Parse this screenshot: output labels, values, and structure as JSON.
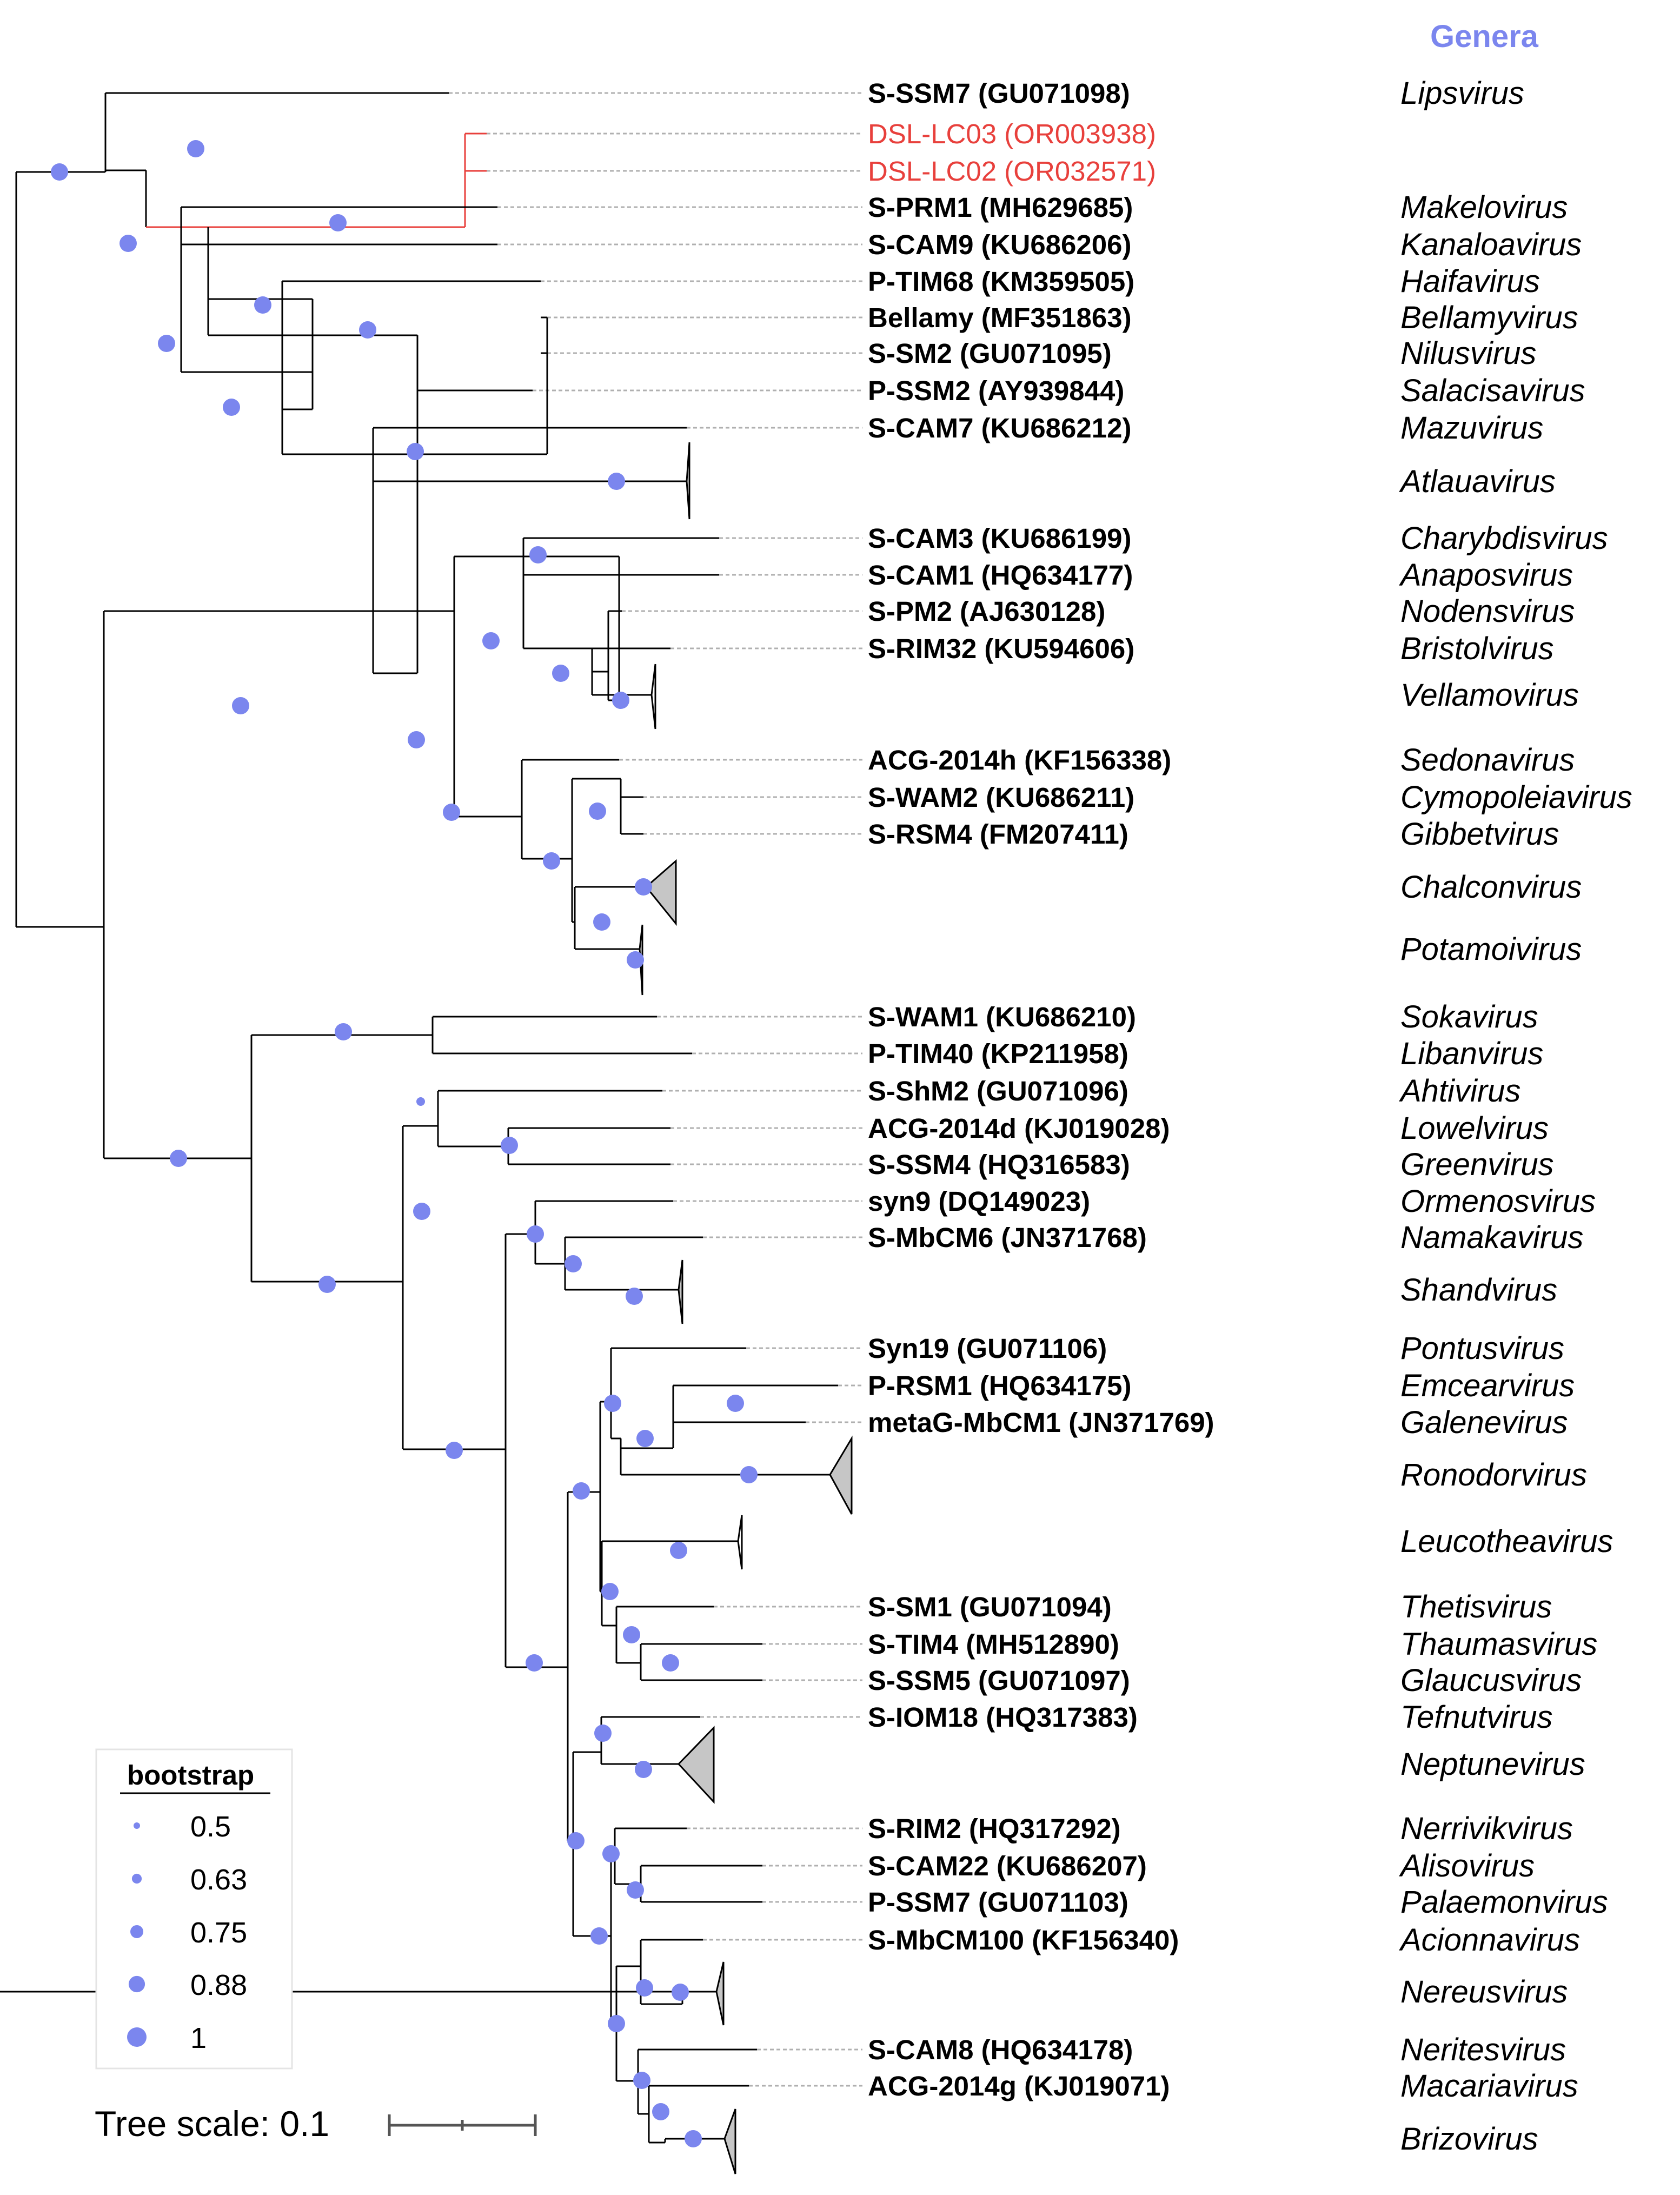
{
  "header": {
    "genera_label": "Genera"
  },
  "colors": {
    "bootstrap_dot": "#7b86ee",
    "highlight": "#e8403c",
    "collapsed_fill": "#c6c6c6",
    "branch": "#000000",
    "dashed": "#b0b0b0"
  },
  "tips": [
    {
      "label": "S-SSM7 (GU071098)",
      "genus": "Lipsvirus"
    },
    {
      "label": "DSL-LC03 (OR003938)",
      "genus": "",
      "highlight": true
    },
    {
      "label": "DSL-LC02 (OR032571)",
      "genus": "",
      "highlight": true
    },
    {
      "label": "S-PRM1 (MH629685)",
      "genus": "Makelovirus"
    },
    {
      "label": "S-CAM9 (KU686206)",
      "genus": "Kanaloavirus"
    },
    {
      "label": "P-TIM68 (KM359505)",
      "genus": "Haifavirus"
    },
    {
      "label": "Bellamy (MF351863)",
      "genus": "Bellamyvirus"
    },
    {
      "label": "S-SM2 (GU071095)",
      "genus": "Nilusvirus"
    },
    {
      "label": "P-SSM2 (AY939844)",
      "genus": "Salacisavirus"
    },
    {
      "label": "S-CAM7 (KU686212)",
      "genus": "Mazuvirus"
    },
    {
      "label": "",
      "genus": "Atlauavirus"
    },
    {
      "label": "S-CAM3 (KU686199)",
      "genus": "Charybdisvirus"
    },
    {
      "label": "S-CAM1 (HQ634177)",
      "genus": "Anaposvirus"
    },
    {
      "label": "S-PM2 (AJ630128)",
      "genus": "Nodensvirus"
    },
    {
      "label": "S-RIM32 (KU594606)",
      "genus": "Bristolvirus"
    },
    {
      "label": "",
      "genus": "Vellamovirus"
    },
    {
      "label": "ACG-2014h (KF156338)",
      "genus": "Sedonavirus"
    },
    {
      "label": "S-WAM2 (KU686211)",
      "genus": "Cymopoleiavirus"
    },
    {
      "label": "S-RSM4 (FM207411)",
      "genus": "Gibbetvirus"
    },
    {
      "label": "",
      "genus": "Chalconvirus"
    },
    {
      "label": "",
      "genus": "Potamoivirus"
    },
    {
      "label": "S-WAM1 (KU686210)",
      "genus": "Sokavirus"
    },
    {
      "label": "P-TIM40 (KP211958)",
      "genus": "Libanvirus"
    },
    {
      "label": "S-ShM2 (GU071096)",
      "genus": "Ahtivirus"
    },
    {
      "label": "ACG-2014d (KJ019028)",
      "genus": "Lowelvirus"
    },
    {
      "label": "S-SSM4 (HQ316583)",
      "genus": "Greenvirus"
    },
    {
      "label": "syn9 (DQ149023)",
      "genus": "Ormenosvirus"
    },
    {
      "label": "S-MbCM6 (JN371768)",
      "genus": "Namakavirus"
    },
    {
      "label": "",
      "genus": "Shandvirus"
    },
    {
      "label": "Syn19 (GU071106)",
      "genus": "Pontusvirus"
    },
    {
      "label": "P-RSM1 (HQ634175)",
      "genus": "Emcearvirus"
    },
    {
      "label": "metaG-MbCM1 (JN371769)",
      "genus": "Galenevirus"
    },
    {
      "label": "",
      "genus": "Ronodorvirus"
    },
    {
      "label": "",
      "genus": "Leucotheavirus"
    },
    {
      "label": "S-SM1 (GU071094)",
      "genus": "Thetisvirus"
    },
    {
      "label": "S-TIM4 (MH512890)",
      "genus": "Thaumasvirus"
    },
    {
      "label": "S-SSM5 (GU071097)",
      "genus": "Glaucusvirus"
    },
    {
      "label": "S-IOM18 (HQ317383)",
      "genus": "Tefnutvirus"
    },
    {
      "label": "",
      "genus": "Neptunevirus"
    },
    {
      "label": "S-RIM2 (HQ317292)",
      "genus": "Nerrivikvirus"
    },
    {
      "label": "S-CAM22 (KU686207)",
      "genus": "Alisovirus"
    },
    {
      "label": "P-SSM7 (GU071103)",
      "genus": "Palaemonvirus"
    },
    {
      "label": "S-MbCM100 (KF156340)",
      "genus": "Acionnavirus"
    },
    {
      "label": "",
      "genus": "Nereusvirus"
    },
    {
      "label": "S-CAM8 (HQ634178)",
      "genus": "Neritesvirus"
    },
    {
      "label": "ACG-2014g (KJ019071)",
      "genus": "Macariavirus"
    },
    {
      "label": "",
      "genus": "Brizovirus"
    }
  ],
  "legend": {
    "title": "bootstrap",
    "items": [
      {
        "label": "0.5",
        "value": 0.5
      },
      {
        "label": "0.63",
        "value": 0.63
      },
      {
        "label": "0.75",
        "value": 0.75
      },
      {
        "label": "0.88",
        "value": 0.88
      },
      {
        "label": "1",
        "value": 1.0
      }
    ]
  },
  "scale": {
    "label": "Tree scale: 0.1"
  }
}
